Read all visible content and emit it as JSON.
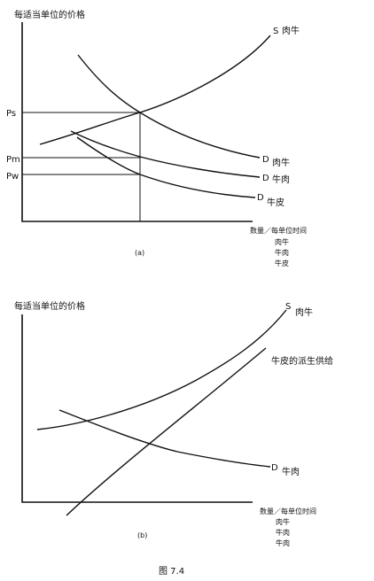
{
  "figure_caption": "图 7.4",
  "chart_data": [
    {
      "type": "line",
      "panel_label": "(a)",
      "ylabel": "每适当单位的价格",
      "xlabel": "数量／每单位时间",
      "xlabel_lines": [
        "肉牛",
        "牛肉",
        "牛皮"
      ],
      "y_tick_labels": [
        "Ps",
        "Pm",
        "Pw"
      ],
      "curve_labels": [
        {
          "letter": "S",
          "name": "肉牛"
        },
        {
          "letter": "D",
          "name": "肉牛"
        },
        {
          "letter": "D",
          "name": "牛肉"
        },
        {
          "letter": "D",
          "name": "牛皮"
        }
      ]
    },
    {
      "type": "line",
      "panel_label": "(b)",
      "ylabel": "每适当单位的价格",
      "xlabel": "数量／每单位时间",
      "xlabel_lines": [
        "肉牛",
        "牛肉",
        "牛肉"
      ],
      "curve_labels": [
        {
          "letter": "S",
          "name": "肉牛"
        },
        {
          "letter": "",
          "name": "牛皮的派生供给"
        },
        {
          "letter": "D",
          "name": "牛肉"
        }
      ]
    }
  ]
}
